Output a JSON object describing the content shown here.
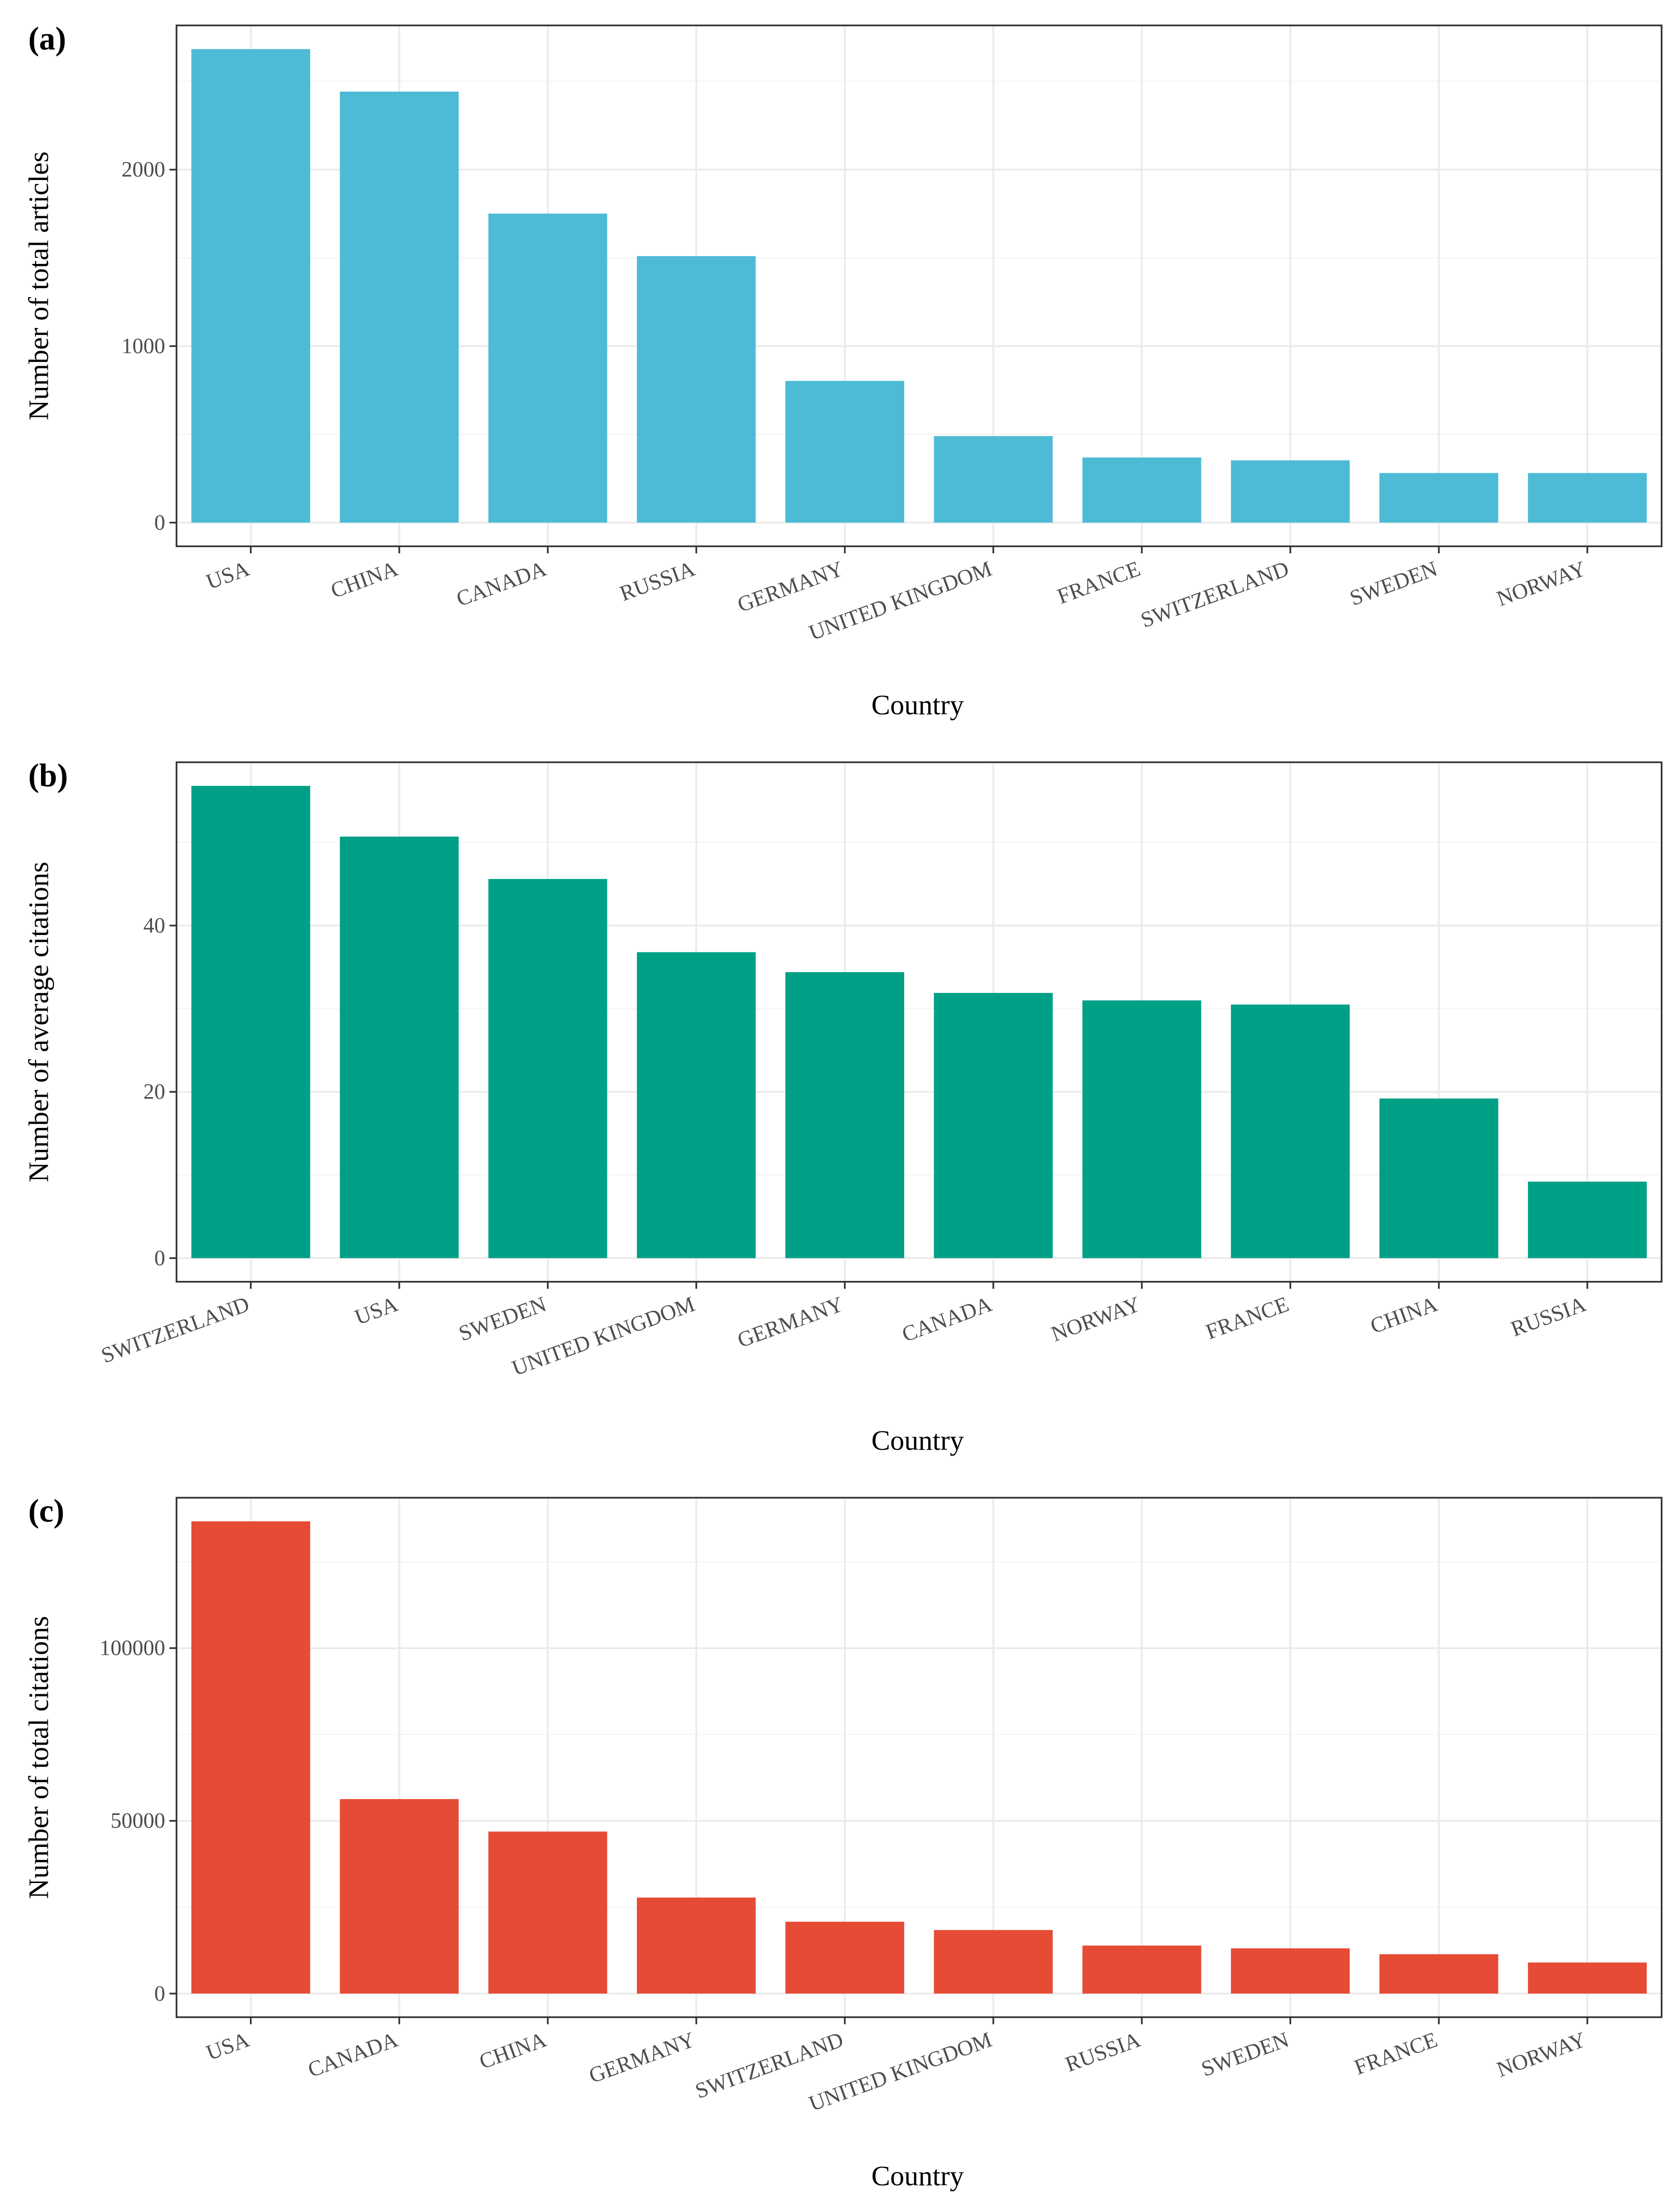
{
  "chart_data": [
    {
      "type": "bar",
      "panel_label": "(a)",
      "categories": [
        "USA",
        "CHINA",
        "CANADA",
        "RUSSIA",
        "GERMANY",
        "UNITED KINGDOM",
        "FRANCE",
        "SWITZERLAND",
        "SWEDEN",
        "NORWAY"
      ],
      "values": [
        2683,
        2442,
        1751,
        1510,
        803,
        490,
        369,
        353,
        281,
        281
      ],
      "xlabel": "Country",
      "ylabel": "Number of total articles",
      "yticks": [
        0,
        1000,
        2000
      ],
      "ytick_labels": [
        "0",
        "1000",
        "2000"
      ],
      "ylim": [
        0,
        2683
      ],
      "color": "#4DBBD5",
      "grid": true
    },
    {
      "type": "bar",
      "panel_label": "(b)",
      "categories": [
        "SWITZERLAND",
        "USA",
        "SWEDEN",
        "UNITED KINGDOM",
        "GERMANY",
        "CANADA",
        "NORWAY",
        "FRANCE",
        "CHINA",
        "RUSSIA"
      ],
      "values": [
        56.8,
        50.7,
        45.6,
        36.8,
        34.4,
        31.9,
        31.0,
        30.5,
        19.2,
        9.2
      ],
      "xlabel": "Country",
      "ylabel": "Number of average citations",
      "yticks": [
        0,
        20,
        40
      ],
      "ytick_labels": [
        "0",
        "20",
        "40"
      ],
      "ylim": [
        0,
        56.8
      ],
      "color": "#00A087",
      "grid": true
    },
    {
      "type": "bar",
      "panel_label": "(c)",
      "categories": [
        "USA",
        "CANADA",
        "CHINA",
        "GERMANY",
        "SWITZERLAND",
        "UNITED KINGDOM",
        "RUSSIA",
        "SWEDEN",
        "FRANCE",
        "NORWAY"
      ],
      "values": [
        136700,
        56300,
        46900,
        27800,
        20800,
        18400,
        13900,
        13100,
        11400,
        9000
      ],
      "xlabel": "Country",
      "ylabel": "Number of total citations",
      "yticks": [
        0,
        50000,
        100000
      ],
      "ytick_labels": [
        "0",
        "50000",
        "100000"
      ],
      "ylim": [
        0,
        136700
      ],
      "color": "#E64B35",
      "grid": true
    }
  ]
}
